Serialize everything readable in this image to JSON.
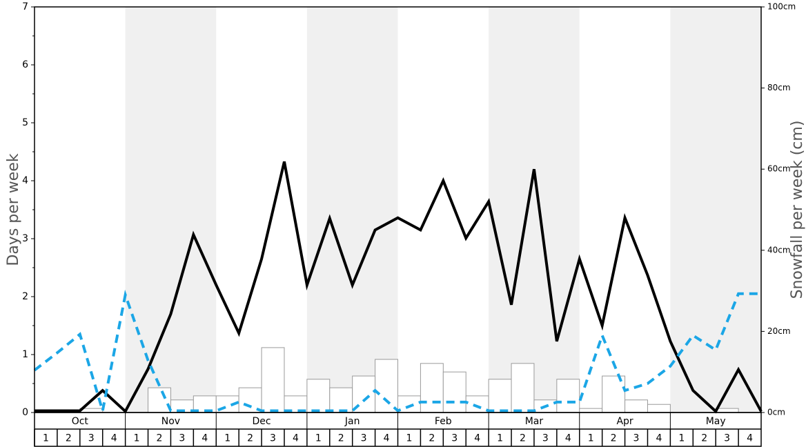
{
  "chart_data": {
    "type": "combo",
    "ylabel": "Days per week",
    "y2label": "Snowfall per week (cm)",
    "months": [
      "Oct",
      "Nov",
      "Dec",
      "Jan",
      "Feb",
      "Mar",
      "Apr",
      "May"
    ],
    "categories": [
      "1",
      "2",
      "3",
      "4",
      "1",
      "2",
      "3",
      "4",
      "1",
      "2",
      "3",
      "4",
      "1",
      "2",
      "3",
      "4",
      "1",
      "2",
      "3",
      "4",
      "1",
      "2",
      "3",
      "4",
      "1",
      "2",
      "3",
      "4",
      "1",
      "2",
      "3",
      "4"
    ],
    "x": [
      0,
      1,
      2,
      3,
      4,
      5,
      6,
      7,
      8,
      9,
      10,
      11,
      12,
      13,
      14,
      15,
      16,
      17,
      18,
      19,
      20,
      21,
      22,
      23,
      24,
      25,
      26,
      27,
      28,
      29,
      30,
      31,
      32
    ],
    "xlim": [
      0,
      32
    ],
    "ylim": [
      0,
      7
    ],
    "yticks": [
      0,
      1,
      2,
      3,
      4,
      5,
      6,
      7
    ],
    "y2lim": [
      0,
      100
    ],
    "y2ticks": [
      {
        "value": 0,
        "label": "0cm"
      },
      {
        "value": 20,
        "label": "20cm"
      },
      {
        "value": 40,
        "label": "40cm"
      },
      {
        "value": 60,
        "label": "60cm"
      },
      {
        "value": 80,
        "label": "80cm"
      },
      {
        "value": 100,
        "label": "100cm"
      }
    ],
    "shade_color": "#f0f0f0",
    "series": [
      {
        "type": "bar",
        "axis": "y2",
        "color": "#ffffff",
        "values": [
          0,
          0,
          1.0,
          0,
          0,
          6.1,
          3.1,
          4.1,
          4.1,
          6.1,
          16,
          4.1,
          8.2,
          6.1,
          9.0,
          13.1,
          4.1,
          12.1,
          10.0,
          4.1,
          8.2,
          12.1,
          3.1,
          8.2,
          1.0,
          9.0,
          3.1,
          2.0,
          0,
          0,
          1.0,
          0
        ]
      },
      {
        "type": "line",
        "axis": "y",
        "color": "#000000",
        "dashed": false,
        "values": [
          0.03,
          0.03,
          0.03,
          0.38,
          0.02,
          0.75,
          1.7,
          3.07,
          2.2,
          1.37,
          2.65,
          4.33,
          2.2,
          3.35,
          2.2,
          3.15,
          3.36,
          3.15,
          4.0,
          3.01,
          3.64,
          1.86,
          4.2,
          1.23,
          2.65,
          1.5,
          3.36,
          2.37,
          1.23,
          0.38,
          0.02,
          0.74,
          0.02
        ]
      },
      {
        "type": "line",
        "axis": "y",
        "color": "#1ba6e6",
        "dashed": true,
        "values": [
          0.73,
          1.03,
          1.35,
          0.03,
          2.03,
          0.9,
          0.03,
          0.03,
          0.03,
          0.18,
          0.03,
          0.03,
          0.03,
          0.03,
          0.03,
          0.38,
          0.03,
          0.18,
          0.18,
          0.18,
          0.03,
          0.03,
          0.03,
          0.18,
          0.18,
          1.33,
          0.38,
          0.5,
          0.8,
          1.33,
          1.08,
          2.05,
          2.05
        ]
      }
    ]
  }
}
